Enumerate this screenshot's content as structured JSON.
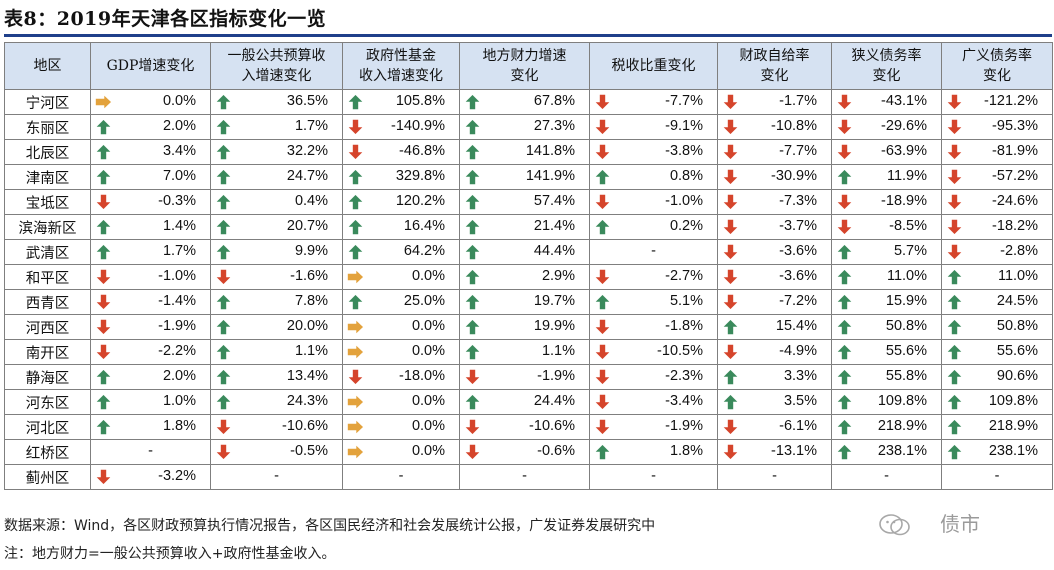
{
  "title": "表8：2019年天津各区指标变化一览",
  "table": {
    "headers": [
      "地区",
      "GDP增速变化",
      "一般公共预算收入增速变化",
      "政府性基金收入增速变化",
      "地方财力增速变化",
      "税收比重变化",
      "财政自给率变化",
      "狭义债务率变化",
      "广义债务率变化"
    ],
    "header_lines": [
      [
        "地区"
      ],
      [
        "GDP增速变化"
      ],
      [
        "一般公共预算收",
        "入增速变化"
      ],
      [
        "政府性基金",
        "收入增速变化"
      ],
      [
        "地方财力增速",
        "变化"
      ],
      [
        "税收比重变化"
      ],
      [
        "财政自给率",
        "变化"
      ],
      [
        "狭义债务率",
        "变化"
      ],
      [
        "广义债务率",
        "变化"
      ]
    ],
    "rows": [
      {
        "region": "宁河区",
        "cells": [
          [
            "flat",
            "0.0%"
          ],
          [
            "up",
            "36.5%"
          ],
          [
            "up",
            "105.8%"
          ],
          [
            "up",
            "67.8%"
          ],
          [
            "down",
            "-7.7%"
          ],
          [
            "down",
            "-1.7%"
          ],
          [
            "down",
            "-43.1%"
          ],
          [
            "down",
            "-121.2%"
          ]
        ]
      },
      {
        "region": "东丽区",
        "cells": [
          [
            "up",
            "2.0%"
          ],
          [
            "up",
            "1.7%"
          ],
          [
            "down",
            "-140.9%"
          ],
          [
            "up",
            "27.3%"
          ],
          [
            "down",
            "-9.1%"
          ],
          [
            "down",
            "-10.8%"
          ],
          [
            "down",
            "-29.6%"
          ],
          [
            "down",
            "-95.3%"
          ]
        ]
      },
      {
        "region": "北辰区",
        "cells": [
          [
            "up",
            "3.4%"
          ],
          [
            "up",
            "32.2%"
          ],
          [
            "down",
            "-46.8%"
          ],
          [
            "up",
            "141.8%"
          ],
          [
            "down",
            "-3.8%"
          ],
          [
            "down",
            "-7.7%"
          ],
          [
            "down",
            "-63.9%"
          ],
          [
            "down",
            "-81.9%"
          ]
        ]
      },
      {
        "region": "津南区",
        "cells": [
          [
            "up",
            "7.0%"
          ],
          [
            "up",
            "24.7%"
          ],
          [
            "up",
            "329.8%"
          ],
          [
            "up",
            "141.9%"
          ],
          [
            "up",
            "0.8%"
          ],
          [
            "down",
            "-30.9%"
          ],
          [
            "up",
            "11.9%"
          ],
          [
            "down",
            "-57.2%"
          ]
        ]
      },
      {
        "region": "宝坻区",
        "cells": [
          [
            "down",
            "-0.3%"
          ],
          [
            "up",
            "0.4%"
          ],
          [
            "up",
            "120.2%"
          ],
          [
            "up",
            "57.4%"
          ],
          [
            "down",
            "-1.0%"
          ],
          [
            "down",
            "-7.3%"
          ],
          [
            "down",
            "-18.9%"
          ],
          [
            "down",
            "-24.6%"
          ]
        ]
      },
      {
        "region": "滨海新区",
        "cells": [
          [
            "up",
            "1.4%"
          ],
          [
            "up",
            "20.7%"
          ],
          [
            "up",
            "16.4%"
          ],
          [
            "up",
            "21.4%"
          ],
          [
            "up",
            "0.2%"
          ],
          [
            "down",
            "-3.7%"
          ],
          [
            "down",
            "-8.5%"
          ],
          [
            "down",
            "-18.2%"
          ]
        ]
      },
      {
        "region": "武清区",
        "cells": [
          [
            "up",
            "1.7%"
          ],
          [
            "up",
            "9.9%"
          ],
          [
            "up",
            "64.2%"
          ],
          [
            "up",
            "44.4%"
          ],
          [
            "none",
            "-"
          ],
          [
            "down",
            "-3.6%"
          ],
          [
            "up",
            "5.7%"
          ],
          [
            "down",
            "-2.8%"
          ]
        ]
      },
      {
        "region": "和平区",
        "cells": [
          [
            "down",
            "-1.0%"
          ],
          [
            "down",
            "-1.6%"
          ],
          [
            "flat",
            "0.0%"
          ],
          [
            "up",
            "2.9%"
          ],
          [
            "down",
            "-2.7%"
          ],
          [
            "down",
            "-3.6%"
          ],
          [
            "up",
            "11.0%"
          ],
          [
            "up",
            "11.0%"
          ]
        ]
      },
      {
        "region": "西青区",
        "cells": [
          [
            "down",
            "-1.4%"
          ],
          [
            "up",
            "7.8%"
          ],
          [
            "up",
            "25.0%"
          ],
          [
            "up",
            "19.7%"
          ],
          [
            "up",
            "5.1%"
          ],
          [
            "down",
            "-7.2%"
          ],
          [
            "up",
            "15.9%"
          ],
          [
            "up",
            "24.5%"
          ]
        ]
      },
      {
        "region": "河西区",
        "cells": [
          [
            "down",
            "-1.9%"
          ],
          [
            "up",
            "20.0%"
          ],
          [
            "flat",
            "0.0%"
          ],
          [
            "up",
            "19.9%"
          ],
          [
            "down",
            "-1.8%"
          ],
          [
            "up",
            "15.4%"
          ],
          [
            "up",
            "50.8%"
          ],
          [
            "up",
            "50.8%"
          ]
        ]
      },
      {
        "region": "南开区",
        "cells": [
          [
            "down",
            "-2.2%"
          ],
          [
            "up",
            "1.1%"
          ],
          [
            "flat",
            "0.0%"
          ],
          [
            "up",
            "1.1%"
          ],
          [
            "down",
            "-10.5%"
          ],
          [
            "down",
            "-4.9%"
          ],
          [
            "up",
            "55.6%"
          ],
          [
            "up",
            "55.6%"
          ]
        ]
      },
      {
        "region": "静海区",
        "cells": [
          [
            "up",
            "2.0%"
          ],
          [
            "up",
            "13.4%"
          ],
          [
            "down",
            "-18.0%"
          ],
          [
            "down",
            "-1.9%"
          ],
          [
            "down",
            "-2.3%"
          ],
          [
            "up",
            "3.3%"
          ],
          [
            "up",
            "55.8%"
          ],
          [
            "up",
            "90.6%"
          ]
        ]
      },
      {
        "region": "河东区",
        "cells": [
          [
            "up",
            "1.0%"
          ],
          [
            "up",
            "24.3%"
          ],
          [
            "flat",
            "0.0%"
          ],
          [
            "up",
            "24.4%"
          ],
          [
            "down",
            "-3.4%"
          ],
          [
            "up",
            "3.5%"
          ],
          [
            "up",
            "109.8%"
          ],
          [
            "up",
            "109.8%"
          ]
        ]
      },
      {
        "region": "河北区",
        "cells": [
          [
            "up",
            "1.8%"
          ],
          [
            "down",
            "-10.6%"
          ],
          [
            "flat",
            "0.0%"
          ],
          [
            "down",
            "-10.6%"
          ],
          [
            "down",
            "-1.9%"
          ],
          [
            "down",
            "-6.1%"
          ],
          [
            "up",
            "218.9%"
          ],
          [
            "up",
            "218.9%"
          ]
        ]
      },
      {
        "region": "红桥区",
        "cells": [
          [
            "none",
            "-"
          ],
          [
            "down",
            "-0.5%"
          ],
          [
            "flat",
            "0.0%"
          ],
          [
            "down",
            "-0.6%"
          ],
          [
            "up",
            "1.8%"
          ],
          [
            "down",
            "-13.1%"
          ],
          [
            "up",
            "238.1%"
          ],
          [
            "up",
            "238.1%"
          ]
        ]
      },
      {
        "region": "蓟州区",
        "cells": [
          [
            "down",
            "-3.2%"
          ],
          [
            "none",
            "-"
          ],
          [
            "none",
            "-"
          ],
          [
            "none",
            "-"
          ],
          [
            "none",
            "-"
          ],
          [
            "none",
            "-"
          ],
          [
            "none",
            "-"
          ],
          [
            "none",
            "-"
          ]
        ]
      }
    ]
  },
  "source": "数据来源：Wind，各区财政预算执行情况报告，各区国民经济和社会发展统计公报，广发证券发展研究中",
  "note": "注：地方财力=一般公共预算收入+政府性基金收入。",
  "watermark": "债市",
  "colors": {
    "up": "#3a8a5c",
    "down": "#d5442b",
    "flat": "#e3a23c",
    "header_bg": "#d6e2f2",
    "title_rule": "#1f3f8a"
  },
  "icons": {
    "up": "arrow-up-icon",
    "down": "arrow-down-icon",
    "flat": "arrow-right-icon"
  }
}
